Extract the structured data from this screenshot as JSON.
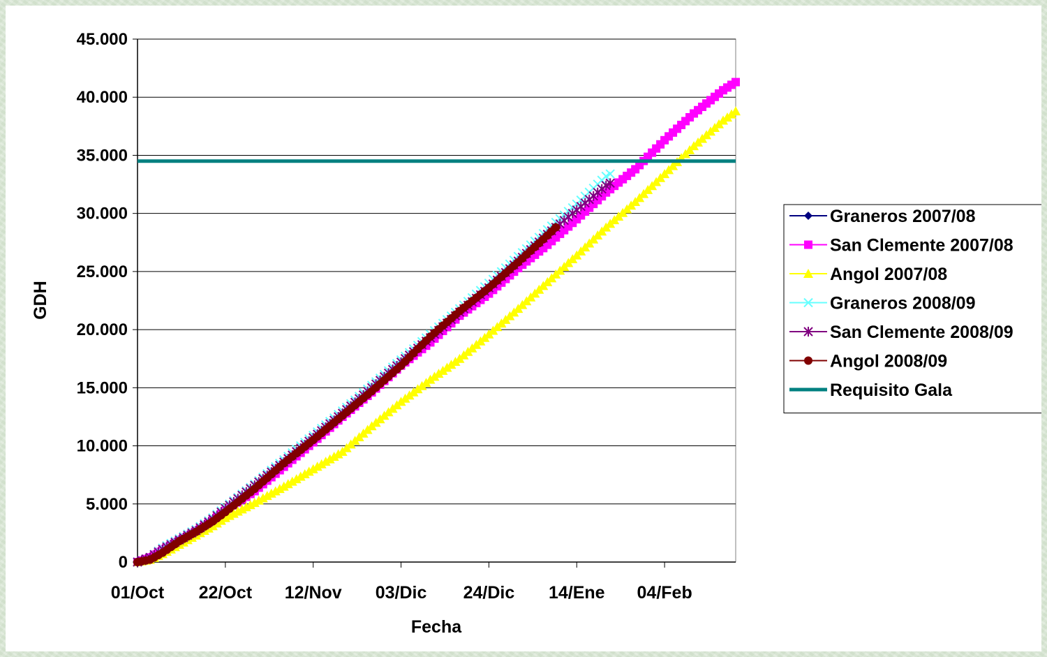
{
  "chart_data": {
    "type": "line",
    "title": "",
    "xlabel": "Fecha",
    "ylabel": "GDH",
    "x_tick_labels": [
      "01/Oct",
      "22/Oct",
      "12/Nov",
      "03/Dic",
      "24/Dic",
      "14/Ene",
      "04/Feb"
    ],
    "x_tick_days": [
      0,
      21,
      42,
      63,
      84,
      105,
      126
    ],
    "x_unit": "days from 01/Oct",
    "xlim": [
      0,
      143
    ],
    "ylim": [
      0,
      45000
    ],
    "y_tick_values": [
      0,
      5000,
      10000,
      15000,
      20000,
      25000,
      30000,
      35000,
      40000,
      45000
    ],
    "y_tick_labels": [
      "0",
      "5.000",
      "10.000",
      "15.000",
      "20.000",
      "25.000",
      "30.000",
      "35.000",
      "40.000",
      "45.000"
    ],
    "grid": "horizontal",
    "legend_position": "right",
    "series": [
      {
        "name": "Graneros 2007/08",
        "color": "#000080",
        "marker": "diamond",
        "points": [
          [
            0,
            0
          ],
          [
            3,
            300
          ],
          [
            6,
            1000
          ],
          [
            10,
            1900
          ],
          [
            14,
            2700
          ],
          [
            18,
            3700
          ],
          [
            21,
            4500
          ],
          [
            28,
            6300
          ],
          [
            35,
            8400
          ],
          [
            42,
            10500
          ],
          [
            49,
            12600
          ],
          [
            56,
            14800
          ],
          [
            63,
            17000
          ],
          [
            70,
            19200
          ],
          [
            77,
            21300
          ],
          [
            84,
            23400
          ],
          [
            91,
            25600
          ],
          [
            98,
            28100
          ],
          [
            100,
            28700
          ]
        ]
      },
      {
        "name": "San Clemente 2007/08",
        "color": "#ff00ff",
        "marker": "square",
        "points": [
          [
            0,
            0
          ],
          [
            3,
            400
          ],
          [
            6,
            1100
          ],
          [
            10,
            1900
          ],
          [
            14,
            2700
          ],
          [
            18,
            3600
          ],
          [
            21,
            4400
          ],
          [
            28,
            6100
          ],
          [
            35,
            8200
          ],
          [
            42,
            10300
          ],
          [
            49,
            12500
          ],
          [
            56,
            14600
          ],
          [
            63,
            16900
          ],
          [
            70,
            18900
          ],
          [
            77,
            21200
          ],
          [
            84,
            23100
          ],
          [
            91,
            25300
          ],
          [
            98,
            27300
          ],
          [
            105,
            29500
          ],
          [
            112,
            31800
          ],
          [
            119,
            33800
          ],
          [
            126,
            36300
          ],
          [
            133,
            38600
          ],
          [
            140,
            40600
          ],
          [
            143,
            41300
          ]
        ]
      },
      {
        "name": "Angol 2007/08",
        "color": "#ffff00",
        "marker": "triangle",
        "points": [
          [
            0,
            0
          ],
          [
            3,
            200
          ],
          [
            6,
            700
          ],
          [
            10,
            1500
          ],
          [
            14,
            2300
          ],
          [
            18,
            3100
          ],
          [
            21,
            3800
          ],
          [
            28,
            5100
          ],
          [
            35,
            6500
          ],
          [
            42,
            8000
          ],
          [
            49,
            9500
          ],
          [
            56,
            11700
          ],
          [
            63,
            13800
          ],
          [
            70,
            15700
          ],
          [
            77,
            17500
          ],
          [
            84,
            19600
          ],
          [
            91,
            21800
          ],
          [
            98,
            24100
          ],
          [
            105,
            26400
          ],
          [
            112,
            28800
          ],
          [
            119,
            31000
          ],
          [
            126,
            33400
          ],
          [
            133,
            35800
          ],
          [
            140,
            38000
          ],
          [
            143,
            38800
          ]
        ]
      },
      {
        "name": "Graneros 2008/09",
        "color": "#66ffff",
        "marker": "x",
        "points": [
          [
            0,
            0
          ],
          [
            3,
            400
          ],
          [
            6,
            1200
          ],
          [
            10,
            2000
          ],
          [
            14,
            2800
          ],
          [
            18,
            3800
          ],
          [
            21,
            4700
          ],
          [
            28,
            6700
          ],
          [
            35,
            8800
          ],
          [
            42,
            10900
          ],
          [
            49,
            13000
          ],
          [
            56,
            15200
          ],
          [
            63,
            17400
          ],
          [
            70,
            19600
          ],
          [
            77,
            21800
          ],
          [
            84,
            24000
          ],
          [
            91,
            26300
          ],
          [
            98,
            28600
          ],
          [
            105,
            30800
          ],
          [
            112,
            33200
          ],
          [
            113,
            33400
          ]
        ]
      },
      {
        "name": "San Clemente 2008/09",
        "color": "#800080",
        "marker": "star",
        "points": [
          [
            0,
            0
          ],
          [
            3,
            400
          ],
          [
            6,
            1100
          ],
          [
            10,
            1900
          ],
          [
            14,
            2700
          ],
          [
            18,
            3700
          ],
          [
            21,
            4600
          ],
          [
            28,
            6600
          ],
          [
            35,
            8600
          ],
          [
            42,
            10700
          ],
          [
            49,
            12800
          ],
          [
            56,
            15000
          ],
          [
            63,
            17200
          ],
          [
            70,
            19300
          ],
          [
            77,
            21500
          ],
          [
            84,
            23600
          ],
          [
            91,
            25900
          ],
          [
            98,
            28200
          ],
          [
            105,
            30300
          ],
          [
            112,
            32400
          ],
          [
            113,
            32600
          ]
        ]
      },
      {
        "name": "Angol 2008/09",
        "color": "#800000",
        "marker": "circle",
        "points": [
          [
            0,
            0
          ],
          [
            3,
            200
          ],
          [
            6,
            800
          ],
          [
            10,
            1800
          ],
          [
            14,
            2600
          ],
          [
            18,
            3500
          ],
          [
            21,
            4300
          ],
          [
            28,
            6300
          ],
          [
            35,
            8500
          ],
          [
            42,
            10500
          ],
          [
            49,
            12600
          ],
          [
            56,
            14700
          ],
          [
            63,
            16900
          ],
          [
            70,
            19400
          ],
          [
            77,
            21600
          ],
          [
            84,
            23600
          ],
          [
            91,
            25800
          ],
          [
            98,
            28100
          ],
          [
            100,
            28800
          ]
        ]
      },
      {
        "name": "Requisito Gala",
        "color": "#008080",
        "marker": "none",
        "points": [
          [
            0,
            34500
          ],
          [
            143,
            34500
          ]
        ]
      }
    ]
  }
}
